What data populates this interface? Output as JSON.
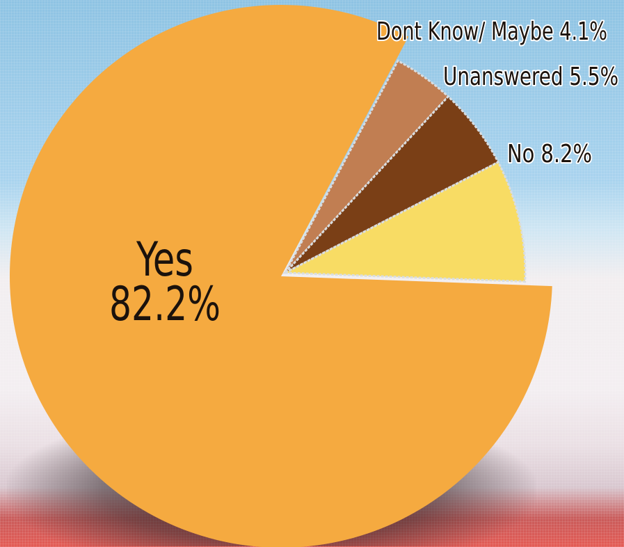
{
  "chart_data": {
    "type": "pie",
    "title": "",
    "slices": [
      {
        "label": "Yes",
        "value": 82.2,
        "display": "82.2%",
        "color": "#f5aa40"
      },
      {
        "label": "Dont Know/ Maybe",
        "value": 4.1,
        "display": "4.1%",
        "color": "#c17e52"
      },
      {
        "label": "Unanswered",
        "value": 5.5,
        "display": "5.5%",
        "color": "#7a3f16"
      },
      {
        "label": "No",
        "value": 8.2,
        "display": "8.2%",
        "color": "#f8dc64"
      }
    ],
    "legend": "none"
  },
  "labels": {
    "yes": {
      "name": "Yes",
      "value": "82.2%"
    },
    "dont_know": "Dont Know/ Maybe 4.1%",
    "unanswered": "Unanswered 5.5%",
    "no": "No 8.2%"
  }
}
